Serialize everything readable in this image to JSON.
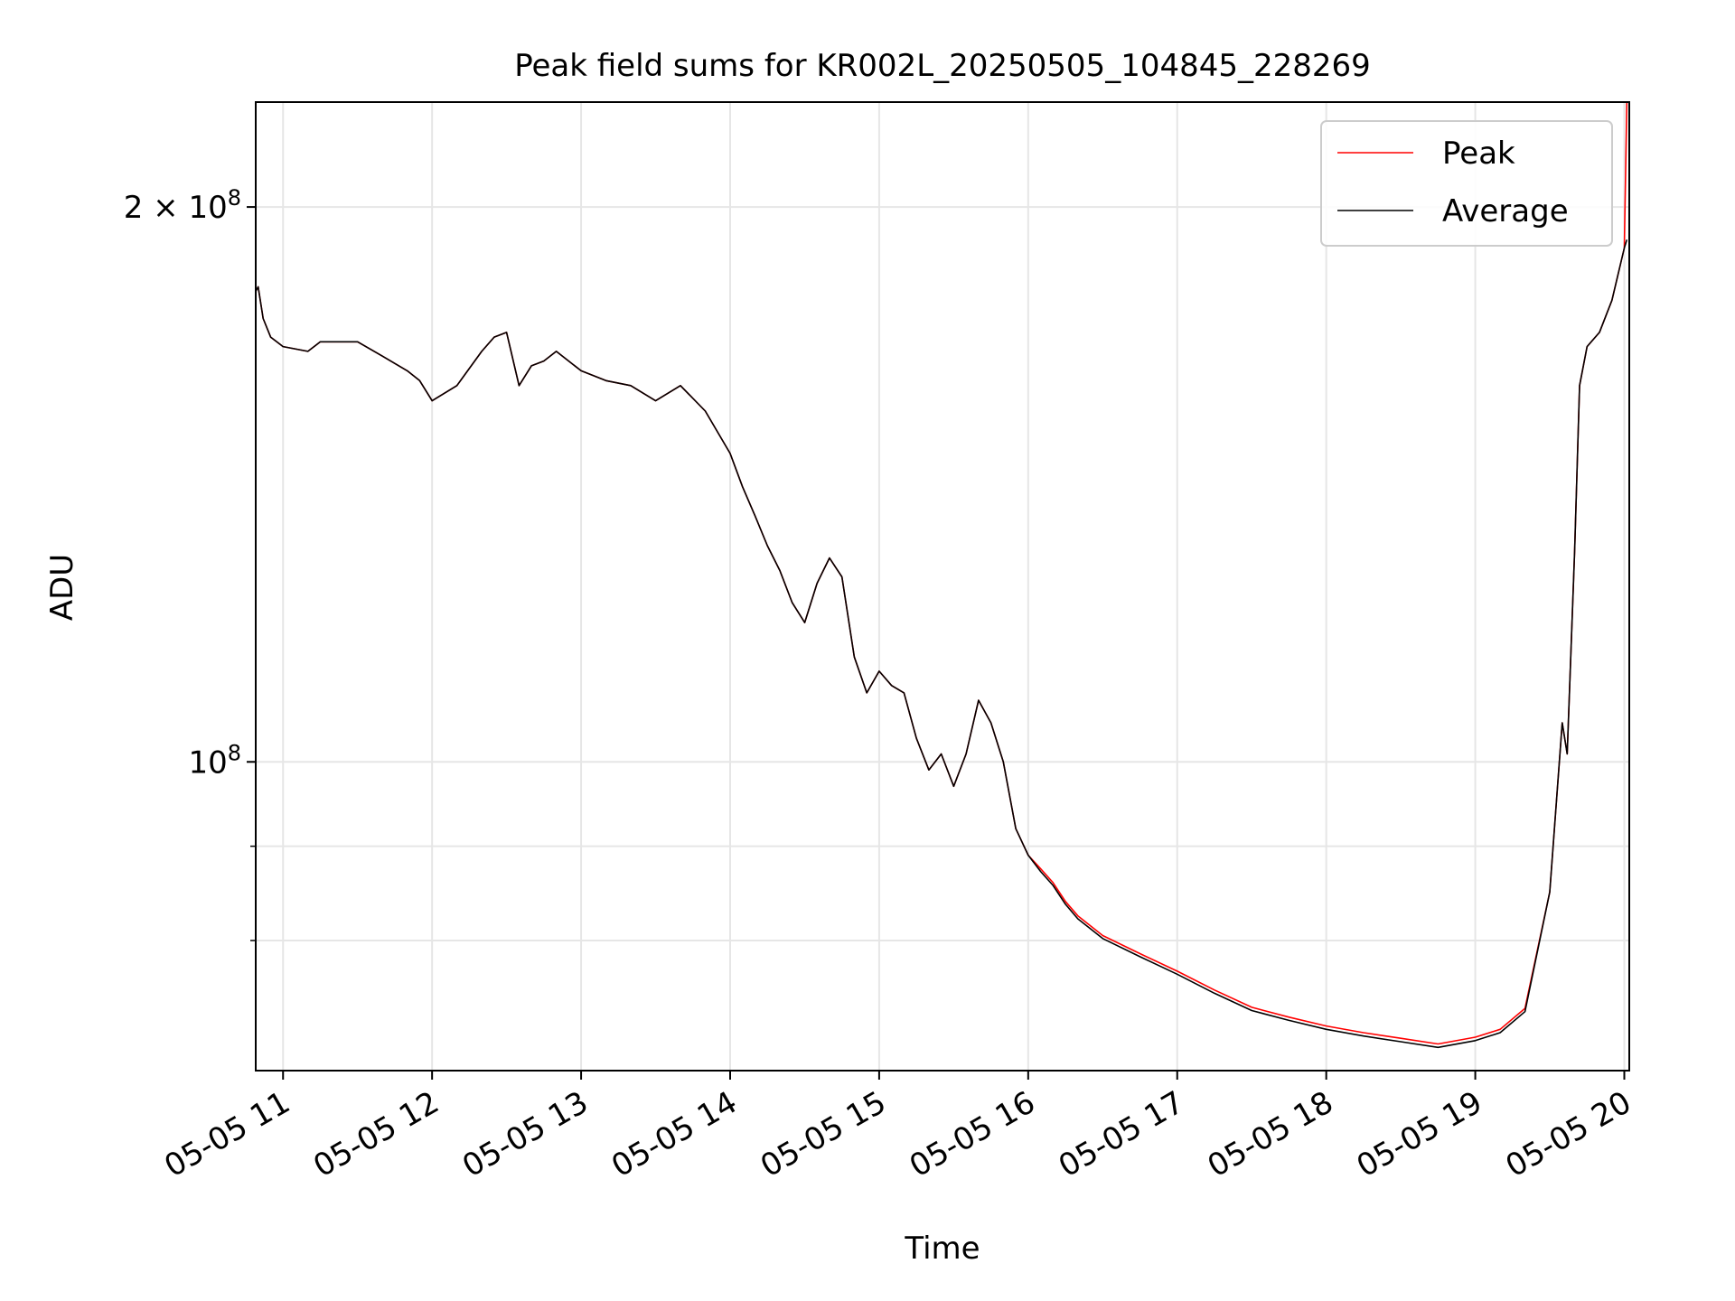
{
  "chart_data": {
    "type": "line",
    "title": "Peak field sums for KR002L_20250505_104845_228269",
    "xlabel": "Time",
    "ylabel": "ADU",
    "yscale": "log",
    "grid": true,
    "legend_position": "top-right",
    "xlim": [
      "2025-05-05 10:49",
      "2025-05-05 20:02"
    ],
    "ylim": [
      68000000,
      228000000
    ],
    "x_ticks": [
      {
        "time": "2025-05-05 11:00",
        "label": "05-05 11"
      },
      {
        "time": "2025-05-05 12:00",
        "label": "05-05 12"
      },
      {
        "time": "2025-05-05 13:00",
        "label": "05-05 13"
      },
      {
        "time": "2025-05-05 14:00",
        "label": "05-05 14"
      },
      {
        "time": "2025-05-05 15:00",
        "label": "05-05 15"
      },
      {
        "time": "2025-05-05 16:00",
        "label": "05-05 16"
      },
      {
        "time": "2025-05-05 17:00",
        "label": "05-05 17"
      },
      {
        "time": "2025-05-05 18:00",
        "label": "05-05 18"
      },
      {
        "time": "2025-05-05 19:00",
        "label": "05-05 19"
      },
      {
        "time": "2025-05-05 20:00",
        "label": "05-05 20"
      }
    ],
    "y_major_ticks": [
      {
        "value": 100000000,
        "label_base": "10",
        "label_exp": "8"
      },
      {
        "value": 200000000,
        "label_base": "2 × 10",
        "label_exp": "8"
      }
    ],
    "y_minor_ticks": [
      80000000,
      90000000
    ],
    "x": [
      "2025-05-05 10:49",
      "2025-05-05 10:50",
      "2025-05-05 10:52",
      "2025-05-05 10:55",
      "2025-05-05 11:00",
      "2025-05-05 11:10",
      "2025-05-05 11:15",
      "2025-05-05 11:30",
      "2025-05-05 11:40",
      "2025-05-05 11:50",
      "2025-05-05 11:55",
      "2025-05-05 12:00",
      "2025-05-05 12:10",
      "2025-05-05 12:20",
      "2025-05-05 12:25",
      "2025-05-05 12:30",
      "2025-05-05 12:35",
      "2025-05-05 12:40",
      "2025-05-05 12:45",
      "2025-05-05 12:50",
      "2025-05-05 13:00",
      "2025-05-05 13:10",
      "2025-05-05 13:20",
      "2025-05-05 13:30",
      "2025-05-05 13:40",
      "2025-05-05 13:50",
      "2025-05-05 14:00",
      "2025-05-05 14:05",
      "2025-05-05 14:10",
      "2025-05-05 14:15",
      "2025-05-05 14:20",
      "2025-05-05 14:25",
      "2025-05-05 14:30",
      "2025-05-05 14:35",
      "2025-05-05 14:40",
      "2025-05-05 14:45",
      "2025-05-05 14:50",
      "2025-05-05 14:55",
      "2025-05-05 15:00",
      "2025-05-05 15:05",
      "2025-05-05 15:10",
      "2025-05-05 15:15",
      "2025-05-05 15:20",
      "2025-05-05 15:25",
      "2025-05-05 15:30",
      "2025-05-05 15:35",
      "2025-05-05 15:40",
      "2025-05-05 15:45",
      "2025-05-05 15:50",
      "2025-05-05 15:55",
      "2025-05-05 16:00",
      "2025-05-05 16:05",
      "2025-05-05 16:10",
      "2025-05-05 16:15",
      "2025-05-05 16:20",
      "2025-05-05 16:30",
      "2025-05-05 16:45",
      "2025-05-05 17:00",
      "2025-05-05 17:15",
      "2025-05-05 17:30",
      "2025-05-05 17:45",
      "2025-05-05 18:00",
      "2025-05-05 18:15",
      "2025-05-05 18:30",
      "2025-05-05 18:45",
      "2025-05-05 19:00",
      "2025-05-05 19:10",
      "2025-05-05 19:20",
      "2025-05-05 19:30",
      "2025-05-05 19:35",
      "2025-05-05 19:37",
      "2025-05-05 19:40",
      "2025-05-05 19:42",
      "2025-05-05 19:45",
      "2025-05-05 19:50",
      "2025-05-05 19:55",
      "2025-05-05 20:00",
      "2025-05-05 20:01"
    ],
    "series": [
      {
        "name": "Peak",
        "color": "#ff0000",
        "values": [
          180000000,
          181000000,
          174000000,
          170000000,
          168000000,
          167000000,
          169000000,
          169000000,
          166000000,
          163000000,
          161000000,
          157000000,
          160000000,
          167000000,
          170000000,
          171000000,
          160000000,
          164000000,
          165000000,
          167000000,
          163000000,
          161000000,
          160000000,
          157000000,
          160000000,
          155000000,
          147000000,
          141000000,
          136000000,
          131000000,
          127000000,
          122000000,
          119000000,
          125000000,
          129000000,
          126000000,
          114000000,
          109000000,
          112000000,
          110000000,
          109000000,
          103000000,
          99000000,
          101000000,
          97000000,
          101000000,
          108000000,
          105000000,
          100000000,
          92000000,
          89000000,
          87500000,
          86000000,
          84000000,
          82500000,
          80500000,
          78700000,
          77000000,
          75200000,
          73600000,
          72700000,
          71900000,
          71300000,
          70800000,
          70300000,
          70900000,
          71600000,
          73500000,
          85000000,
          105000000,
          101000000,
          130000000,
          160000000,
          168000000,
          171000000,
          178000000,
          190000000,
          228000000
        ]
      },
      {
        "name": "Average",
        "color": "#000000",
        "values": [
          180000000,
          181000000,
          174000000,
          170000000,
          168000000,
          167000000,
          169000000,
          169000000,
          166000000,
          163000000,
          161000000,
          157000000,
          160000000,
          167000000,
          170000000,
          171000000,
          160000000,
          164000000,
          165000000,
          167000000,
          163000000,
          161000000,
          160000000,
          157000000,
          160000000,
          155000000,
          147000000,
          141000000,
          136000000,
          131000000,
          127000000,
          122000000,
          119000000,
          125000000,
          129000000,
          126000000,
          114000000,
          109000000,
          112000000,
          110000000,
          109000000,
          103000000,
          99000000,
          101000000,
          97000000,
          101000000,
          108000000,
          105000000,
          100000000,
          92000000,
          89000000,
          87200000,
          85700000,
          83700000,
          82200000,
          80200000,
          78400000,
          76700000,
          74900000,
          73300000,
          72400000,
          71600000,
          71000000,
          70500000,
          70000000,
          70600000,
          71300000,
          73200000,
          85000000,
          105000000,
          101000000,
          130000000,
          160000000,
          168000000,
          171000000,
          178000000,
          190000000,
          192000000
        ]
      }
    ]
  }
}
